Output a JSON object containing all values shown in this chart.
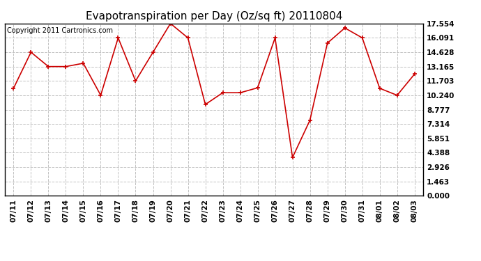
{
  "title": "Evapotranspiration per Day (Oz/sq ft) 20110804",
  "copyright_text": "Copyright 2011 Cartronics.com",
  "dates": [
    "07/11",
    "07/12",
    "07/13",
    "07/14",
    "07/15",
    "07/16",
    "07/17",
    "07/18",
    "07/19",
    "07/20",
    "07/21",
    "07/22",
    "07/23",
    "07/24",
    "07/25",
    "07/26",
    "07/27",
    "07/28",
    "07/29",
    "07/30",
    "07/31",
    "08/01",
    "08/02",
    "08/03"
  ],
  "values": [
    10.95,
    14.628,
    13.165,
    13.165,
    13.5,
    10.24,
    16.091,
    11.703,
    14.628,
    17.554,
    16.091,
    9.3,
    10.5,
    10.5,
    11.0,
    16.091,
    3.9,
    7.7,
    15.554,
    17.1,
    16.091,
    10.95,
    10.24,
    12.4
  ],
  "yticks": [
    0.0,
    1.463,
    2.926,
    4.388,
    5.851,
    7.314,
    8.777,
    10.24,
    11.703,
    13.165,
    14.628,
    16.091,
    17.554
  ],
  "line_color": "#cc0000",
  "marker": "+",
  "background_color": "#ffffff",
  "grid_color": "#bbbbbb",
  "ylim": [
    0.0,
    17.554
  ],
  "title_fontsize": 11,
  "copyright_fontsize": 7,
  "tick_fontsize": 7.5
}
